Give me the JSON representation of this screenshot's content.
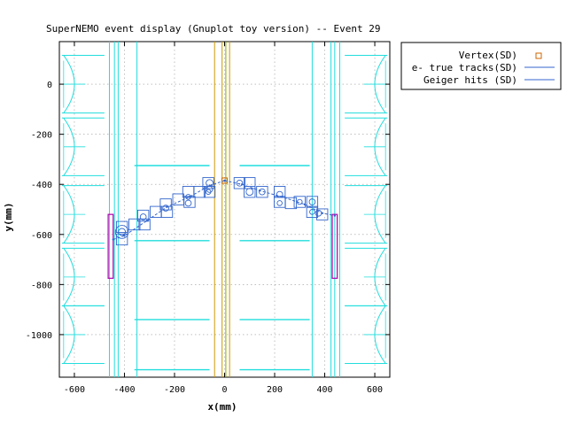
{
  "chart_data": {
    "type": "scatter",
    "title": "SuperNEMO event display (Gnuplot toy version) -- Event 29",
    "xlabel": "x(mm)",
    "ylabel": "y(mm)",
    "xlim": [
      -660,
      660
    ],
    "ylim": [
      -1170,
      170
    ],
    "xticks": [
      -600,
      -400,
      -200,
      0,
      200,
      400,
      600
    ],
    "yticks": [
      0,
      -200,
      -400,
      -600,
      -800,
      -1000
    ],
    "xtick_labels": [
      "-600",
      "-400",
      "-200",
      "0",
      "200",
      "400",
      "600"
    ],
    "ytick_labels": [
      "0",
      "-200",
      "-400",
      "-600",
      "-800",
      "-1000"
    ],
    "grid": true,
    "legend_position": "outside-top-right",
    "legend": [
      {
        "label": "Vertex(SD)",
        "color": "#cc6600",
        "marker": "square"
      },
      {
        "label": "e- true tracks(SD)",
        "color": "#3366cc",
        "marker": "line"
      },
      {
        "label": "Geiger hits (SD)",
        "color": "#3366cc",
        "marker": "line"
      }
    ],
    "colors": {
      "detector": "#22dddd",
      "source_foil": "#cc9900",
      "source_foil_center": "#88aa00",
      "calorimeter_hit": "#aa00aa",
      "track": "#3366cc",
      "vertex": "#cc6600",
      "grid": "#999999"
    },
    "vertex": {
      "x": 0,
      "y": -385
    },
    "tracks": [
      {
        "points": [
          [
            0,
            -385
          ],
          [
            -60,
            -405
          ],
          [
            -140,
            -450
          ],
          [
            -230,
            -490
          ],
          [
            -310,
            -545
          ],
          [
            -400,
            -605
          ],
          [
            -445,
            -620
          ]
        ]
      },
      {
        "points": [
          [
            0,
            -385
          ],
          [
            70,
            -400
          ],
          [
            140,
            -425
          ],
          [
            230,
            -450
          ],
          [
            320,
            -480
          ],
          [
            390,
            -515
          ],
          [
            440,
            -525
          ]
        ]
      }
    ],
    "geiger_hits": [
      {
        "x": -410,
        "y": -590,
        "r": 26
      },
      {
        "x": -410,
        "y": -590,
        "r": 14
      },
      {
        "x": -325,
        "y": -530,
        "r": 12
      },
      {
        "x": -235,
        "y": -495,
        "r": 12
      },
      {
        "x": -145,
        "y": -450,
        "r": 10
      },
      {
        "x": -145,
        "y": -475,
        "r": 12
      },
      {
        "x": -65,
        "y": -430,
        "r": 10
      },
      {
        "x": -60,
        "y": -395,
        "r": 14
      },
      {
        "x": -60,
        "y": -420,
        "r": 12
      },
      {
        "x": 60,
        "y": -395,
        "r": 12
      },
      {
        "x": 100,
        "y": -430,
        "r": 14
      },
      {
        "x": 150,
        "y": -430,
        "r": 12
      },
      {
        "x": 220,
        "y": -440,
        "r": 12
      },
      {
        "x": 220,
        "y": -475,
        "r": 10
      },
      {
        "x": 300,
        "y": -470,
        "r": 10
      },
      {
        "x": 350,
        "y": -470,
        "r": 12
      },
      {
        "x": 350,
        "y": -510,
        "r": 10
      },
      {
        "x": 375,
        "y": -515,
        "r": 12
      }
    ],
    "cells": [
      [
        -410,
        -570
      ],
      [
        -410,
        -620
      ],
      [
        -360,
        -560
      ],
      [
        -325,
        -525
      ],
      [
        -320,
        -560
      ],
      [
        -275,
        -510
      ],
      [
        -235,
        -480
      ],
      [
        -230,
        -510
      ],
      [
        -185,
        -460
      ],
      [
        -145,
        -430
      ],
      [
        -140,
        -470
      ],
      [
        -100,
        -430
      ],
      [
        -65,
        -395
      ],
      [
        -60,
        -430
      ],
      [
        60,
        -395
      ],
      [
        100,
        -395
      ],
      [
        100,
        -430
      ],
      [
        150,
        -430
      ],
      [
        220,
        -430
      ],
      [
        220,
        -470
      ],
      [
        265,
        -475
      ],
      [
        300,
        -470
      ],
      [
        350,
        -470
      ],
      [
        350,
        -510
      ],
      [
        390,
        -520
      ]
    ],
    "calorimeter_hits": [
      {
        "x": [
          -465,
          -445
        ],
        "y": [
          -520,
          -775
        ]
      },
      {
        "x": [
          430,
          450
        ],
        "y": [
          -520,
          -775
        ]
      }
    ],
    "source_foils_x": [
      -40,
      -10,
      20
    ],
    "foil_center_x": 5,
    "tracker_frames_x": [
      -460,
      -425,
      -350,
      350,
      425,
      460
    ],
    "tracker_horizontal": [
      {
        "x": [
          -360,
          -60
        ],
        "y": -325
      },
      {
        "x": [
          60,
          340
        ],
        "y": -325
      },
      {
        "x": [
          -360,
          -60
        ],
        "y": -625
      },
      {
        "x": [
          60,
          340
        ],
        "y": -625
      },
      {
        "x": [
          -360,
          -60
        ],
        "y": -940
      },
      {
        "x": [
          60,
          340
        ],
        "y": -940
      },
      {
        "x": [
          -360,
          -60
        ],
        "y": -1140
      },
      {
        "x": [
          60,
          340
        ],
        "y": -1140
      }
    ],
    "calo_blocks_y": [
      0,
      -250,
      -520,
      -770,
      -1000
    ],
    "calo_block_half": 115
  }
}
